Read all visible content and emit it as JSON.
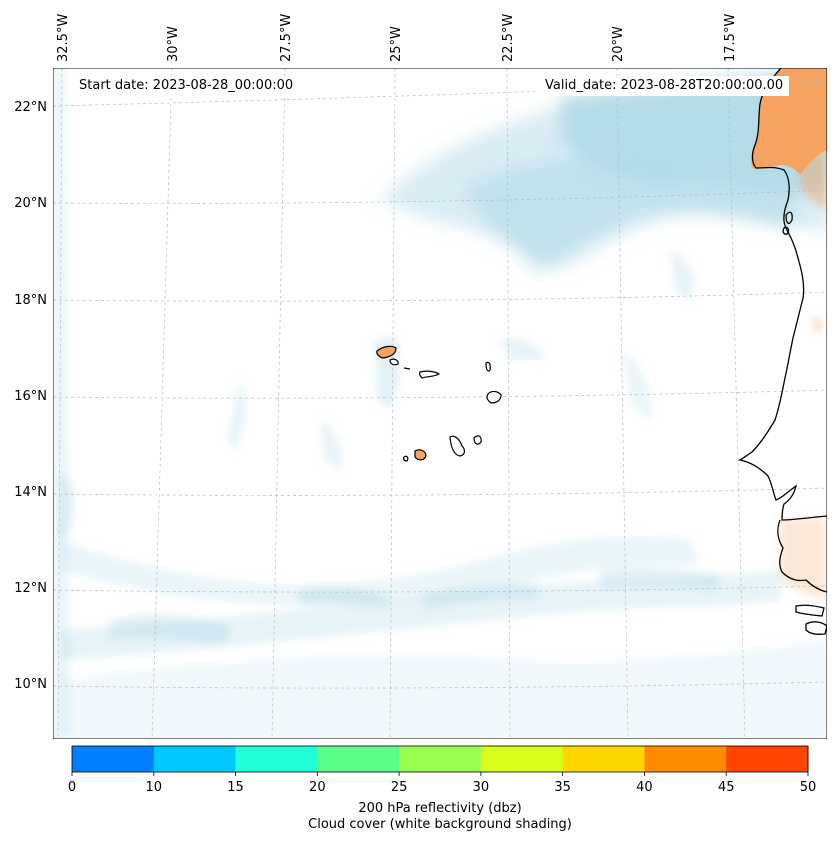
{
  "header": {
    "start_date": "Start date: 2023-08-28_00:00:00",
    "valid_date": "Valid_date: 2023-08-28T20:00:00.00"
  },
  "map": {
    "longitude_labels": [
      "32.5°W",
      "30°W",
      "27.5°W",
      "25°W",
      "22.5°W",
      "20°W",
      "17.5°W"
    ],
    "latitude_labels": [
      "22°N",
      "20°N",
      "18°N",
      "16°N",
      "14°N",
      "12°N",
      "10°N"
    ],
    "gridlines": true,
    "field": "200 hPa reflectivity",
    "cloud_shading_color": "#add8e6",
    "land_fill_color": "#f4a460"
  },
  "colorbar": {
    "ticks": [
      "0",
      "10",
      "15",
      "20",
      "25",
      "30",
      "35",
      "40",
      "45",
      "50"
    ],
    "colors": [
      "#0080ff",
      "#00c8ff",
      "#20ffd8",
      "#5aff8a",
      "#98ff50",
      "#d8ff1a",
      "#ffd700",
      "#ff8c00",
      "#ff4500"
    ],
    "label_line1": "200 hPa reflectivity (dbz)",
    "label_line2": "Cloud cover (white background shading)"
  }
}
